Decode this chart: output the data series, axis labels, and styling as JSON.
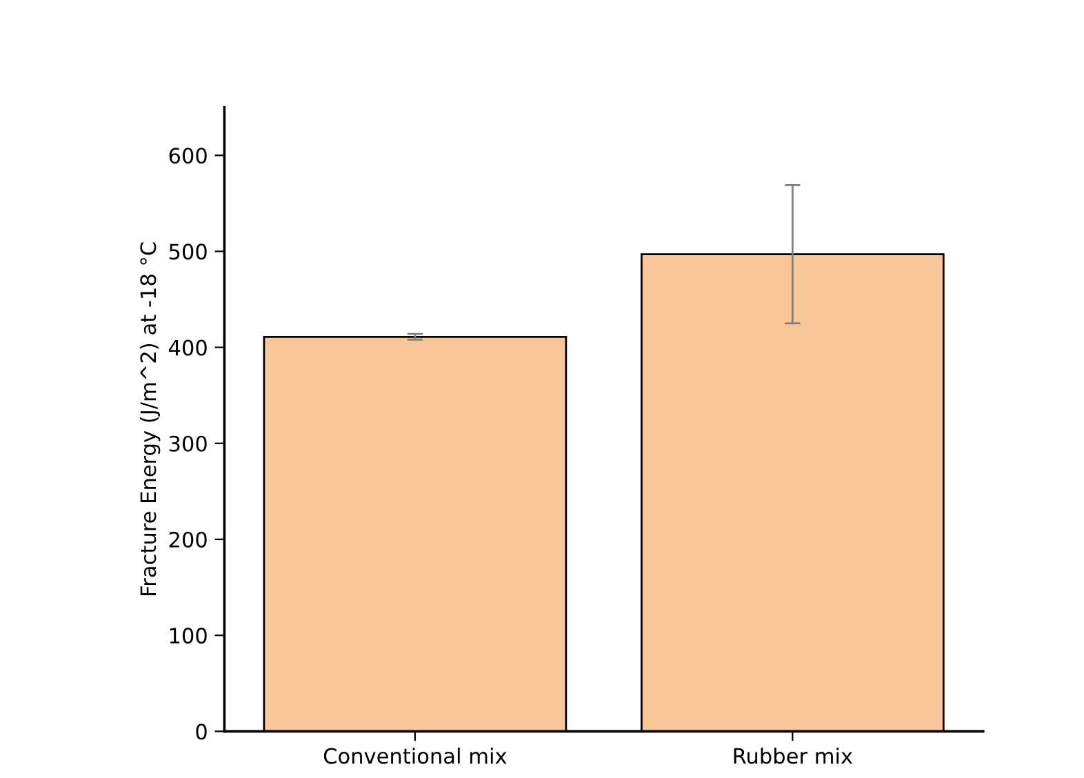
{
  "chart_data": {
    "type": "bar",
    "ylabel": "Fracture Energy (J/m^2) at -18 °C",
    "categories": [
      "Conventional mix",
      "Rubber mix"
    ],
    "values": [
      411,
      497
    ],
    "errors": [
      3,
      72
    ],
    "color": "#f9c797",
    "ylim": [
      0,
      650
    ],
    "yticks": [
      0,
      100,
      200,
      300,
      400,
      500,
      600
    ],
    "grid": false,
    "legend": false
  }
}
